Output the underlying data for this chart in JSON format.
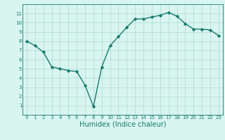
{
  "x": [
    0,
    1,
    2,
    3,
    4,
    5,
    6,
    7,
    8,
    9,
    10,
    11,
    12,
    13,
    14,
    15,
    16,
    17,
    18,
    19,
    20,
    21,
    22,
    23
  ],
  "y": [
    8.0,
    7.5,
    6.8,
    5.2,
    5.0,
    4.8,
    4.7,
    3.2,
    0.9,
    5.2,
    7.5,
    8.5,
    9.5,
    10.4,
    10.4,
    10.6,
    10.8,
    11.1,
    10.7,
    9.9,
    9.3,
    9.3,
    9.2,
    8.6
  ],
  "line_color": "#1a7a6e",
  "bg_color": "#d8f5f0",
  "grid_color": "#b0d9d3",
  "xlabel": "Humidex (Indice chaleur)",
  "ylim": [
    0,
    12
  ],
  "xlim": [
    -0.5,
    23.5
  ],
  "yticks": [
    1,
    2,
    3,
    4,
    5,
    6,
    7,
    8,
    9,
    10,
    11
  ],
  "xticks": [
    0,
    1,
    2,
    3,
    4,
    5,
    6,
    7,
    8,
    9,
    10,
    11,
    12,
    13,
    14,
    15,
    16,
    17,
    18,
    19,
    20,
    21,
    22,
    23
  ],
  "tick_fontsize": 5.0,
  "xlabel_fontsize": 7.0,
  "marker": "D",
  "marker_size": 1.8,
  "line_width": 1.0
}
